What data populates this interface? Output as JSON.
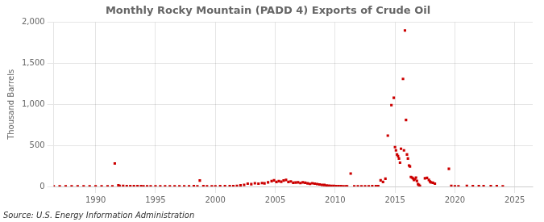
{
  "chart_data": {
    "type": "scatter",
    "title": "Monthly Rocky Mountain (PADD 4) Exports of Crude Oil",
    "ylabel": "Thousand Barrels",
    "annotation": "Source: U.S. Energy Information Administration",
    "color": "#cc0000",
    "marker": "square",
    "grid": true,
    "xlim": [
      1986.5,
      2026.5
    ],
    "xticks": [
      1990,
      1995,
      2000,
      2005,
      2010,
      2015,
      2020,
      2025
    ],
    "ylim": [
      0,
      2000
    ],
    "yticks": [
      0,
      500,
      {
        "value": 1000,
        "label": "1,000"
      },
      {
        "value": 1500,
        "label": "1,500"
      },
      {
        "value": 2000,
        "label": "2,000"
      }
    ],
    "x": [
      1986.5,
      1987.0,
      1987.5,
      1988.0,
      1988.5,
      1989.0,
      1989.5,
      1990.0,
      1990.5,
      1991.0,
      1991.4,
      1991.6,
      1991.9,
      1992.0,
      1992.3,
      1992.6,
      1992.9,
      1993.2,
      1993.5,
      1993.8,
      1994.0,
      1994.3,
      1994.6,
      1995.0,
      1995.4,
      1995.8,
      1996.2,
      1996.6,
      1997.0,
      1997.4,
      1997.8,
      1998.2,
      1998.5,
      1998.7,
      1999.0,
      1999.3,
      1999.7,
      2000.0,
      2000.4,
      2000.8,
      2001.2,
      2001.5,
      2001.8,
      2002.1,
      2002.4,
      2002.7,
      2003.0,
      2003.3,
      2003.6,
      2003.9,
      2004.1,
      2004.4,
      2004.7,
      2004.9,
      2005.1,
      2005.3,
      2005.5,
      2005.7,
      2005.9,
      2006.1,
      2006.3,
      2006.5,
      2006.7,
      2006.9,
      2007.1,
      2007.3,
      2007.5,
      2007.7,
      2007.9,
      2008.1,
      2008.3,
      2008.5,
      2008.7,
      2008.9,
      2009.1,
      2009.3,
      2009.5,
      2009.7,
      2009.9,
      2010.1,
      2010.3,
      2010.5,
      2010.7,
      2010.9,
      2011.0,
      2011.3,
      2011.6,
      2011.9,
      2012.2,
      2012.5,
      2012.8,
      2013.1,
      2013.4,
      2013.6,
      2013.8,
      2014.0,
      2014.2,
      2014.4,
      2014.7,
      2014.9,
      2015.0,
      2015.08,
      2015.17,
      2015.25,
      2015.33,
      2015.42,
      2015.5,
      2015.67,
      2015.75,
      2015.83,
      2015.92,
      2016.0,
      2016.08,
      2016.17,
      2016.25,
      2016.33,
      2016.42,
      2016.5,
      2016.58,
      2016.67,
      2016.75,
      2016.83,
      2016.92,
      2017.0,
      2017.08,
      2017.5,
      2017.67,
      2017.83,
      2017.92,
      2018.0,
      2018.17,
      2018.33,
      2019.5,
      2019.7,
      2020.0,
      2020.3,
      2021.0,
      2021.5,
      2022.0,
      2022.4,
      2023.0,
      2023.5,
      2024.0
    ],
    "values": [
      2,
      1,
      1,
      1,
      1,
      1,
      1,
      2,
      2,
      1,
      1,
      280,
      15,
      8,
      8,
      5,
      5,
      5,
      4,
      4,
      3,
      3,
      2,
      1,
      1,
      1,
      1,
      1,
      1,
      1,
      1,
      5,
      2,
      72,
      5,
      2,
      2,
      3,
      5,
      4,
      5,
      4,
      6,
      14,
      20,
      35,
      28,
      40,
      35,
      42,
      38,
      50,
      65,
      75,
      55,
      65,
      58,
      72,
      80,
      55,
      62,
      45,
      48,
      50,
      42,
      50,
      45,
      38,
      32,
      40,
      35,
      30,
      25,
      20,
      18,
      12,
      10,
      8,
      6,
      5,
      4,
      4,
      3,
      3,
      3,
      158,
      3,
      2,
      3,
      2,
      3,
      5,
      4,
      4,
      75,
      55,
      95,
      620,
      990,
      1080,
      480,
      440,
      390,
      370,
      340,
      290,
      460,
      1310,
      440,
      1900,
      810,
      390,
      340,
      255,
      245,
      115,
      108,
      98,
      78,
      88,
      108,
      68,
      28,
      18,
      8,
      100,
      105,
      80,
      60,
      50,
      45,
      35,
      215,
      8,
      3,
      3,
      8,
      4,
      4,
      4,
      4,
      4,
      3
    ]
  }
}
